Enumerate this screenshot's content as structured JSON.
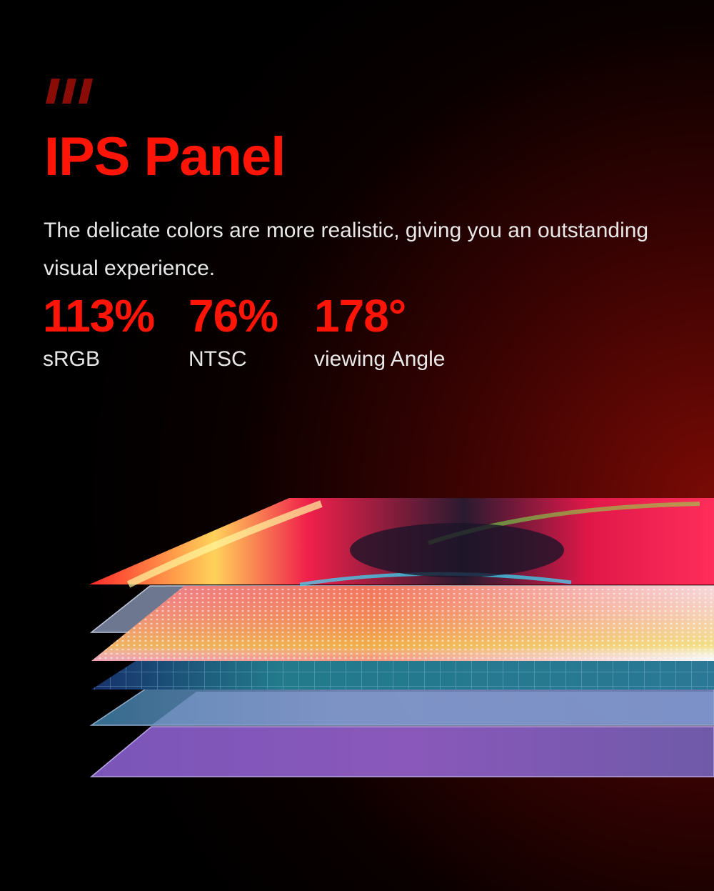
{
  "header": {
    "decor_icon": "triple-slash-icon",
    "title": "IPS Panel",
    "description": "The delicate colors are more realistic, giving you an outstanding visual experience."
  },
  "stats": [
    {
      "value": "113%",
      "label": "sRGB"
    },
    {
      "value": "76%",
      "label": "NTSC"
    },
    {
      "value": "178°",
      "label": "viewing Angle"
    }
  ],
  "colors": {
    "accent": "#ff1408",
    "text": "#e8e8e8",
    "background": "#000000",
    "glow": "#7a0a05"
  }
}
